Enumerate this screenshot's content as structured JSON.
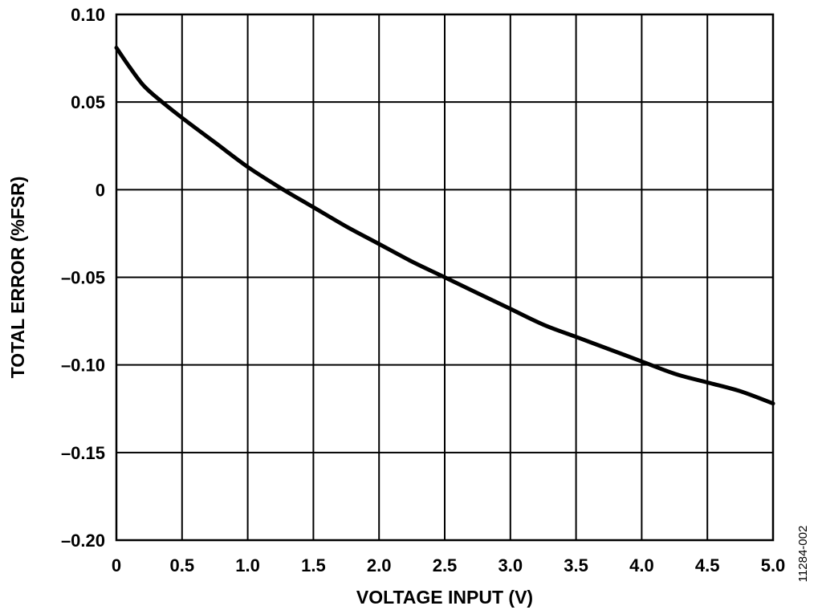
{
  "chart_data": {
    "type": "line",
    "title": "",
    "xlabel": "VOLTAGE INPUT (V)",
    "ylabel": "TOTAL ERROR (%FSR)",
    "xlim": [
      0,
      5.0
    ],
    "ylim": [
      -0.2,
      0.1
    ],
    "x_ticks": [
      0,
      0.5,
      1.0,
      1.5,
      2.0,
      2.5,
      3.0,
      3.5,
      4.0,
      4.5,
      5.0
    ],
    "x_tick_labels": [
      "0",
      "0.5",
      "1.0",
      "1.5",
      "2.0",
      "2.5",
      "3.0",
      "3.5",
      "4.0",
      "4.5",
      "5.0"
    ],
    "y_ticks": [
      0.1,
      0.05,
      0,
      -0.05,
      -0.1,
      -0.15,
      -0.2
    ],
    "y_tick_labels": [
      "0.10",
      "0.05",
      "0",
      "–0.05",
      "–0.10",
      "–0.15",
      "–0.20"
    ],
    "grid": true,
    "legend": "none",
    "series": [
      {
        "color": "#000000",
        "x": [
          0,
          0.1,
          0.2,
          0.3,
          0.5,
          0.75,
          1.0,
          1.25,
          1.5,
          1.75,
          2.0,
          2.25,
          2.5,
          2.75,
          3.0,
          3.25,
          3.5,
          3.75,
          4.0,
          4.25,
          4.5,
          4.75,
          5.0
        ],
        "y": [
          0.081,
          0.07,
          0.06,
          0.053,
          0.041,
          0.027,
          0.013,
          0.001,
          -0.01,
          -0.021,
          -0.031,
          -0.041,
          -0.05,
          -0.059,
          -0.068,
          -0.077,
          -0.084,
          -0.091,
          -0.098,
          -0.105,
          -0.11,
          -0.115,
          -0.122
        ]
      }
    ]
  },
  "figure_id": "11284-002"
}
